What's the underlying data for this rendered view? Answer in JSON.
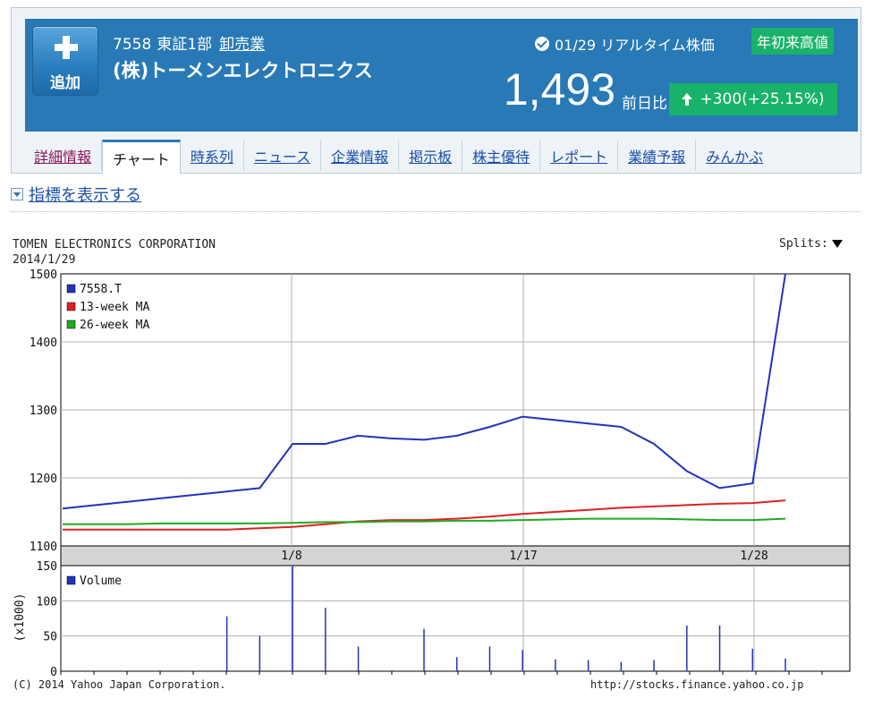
{
  "header": {
    "add_label": "追加",
    "code": "7558",
    "market": "東証1部",
    "industry": "卸売業",
    "company_name": "(株)トーメンエレクトロニクス",
    "realtime_label": "01/29 リアルタイム株価",
    "ytd_badge": "年初来高値",
    "price": "1,493",
    "change_label": "前日比",
    "change_value": "+300",
    "change_pct": "(+25.15%)",
    "colors": {
      "header_bg": "#2879b6",
      "badge_green": "#19b26a"
    }
  },
  "tabs": [
    {
      "label": "詳細情報"
    },
    {
      "label": "チャート",
      "active": true
    },
    {
      "label": "時系列"
    },
    {
      "label": "ニュース"
    },
    {
      "label": "企業情報"
    },
    {
      "label": "掲示板"
    },
    {
      "label": "株主優待"
    },
    {
      "label": "レポート"
    },
    {
      "label": "業績予報"
    },
    {
      "label": "みんかぶ"
    }
  ],
  "indicator_toggle": "指標を表示する",
  "chart": {
    "company": "TOMEN ELECTRONICS CORPORATION",
    "date": "2014/1/29",
    "splits_label": "Splits:",
    "footer_left": "(C) 2014 Yahoo Japan Corporation.",
    "footer_right": "http://stocks.finance.yahoo.co.jp"
  },
  "chart_data": [
    {
      "type": "line",
      "x_ticks": [
        "1/8",
        "1/17",
        "1/28"
      ],
      "yticks": [
        1100,
        1200,
        1300,
        1400,
        1500
      ],
      "ylim": [
        1100,
        1500
      ],
      "grid": true,
      "legend_position": "top-left",
      "series": [
        {
          "name": "7558.T",
          "color": "#2233bb",
          "values": [
            1155,
            1160,
            1165,
            1170,
            1175,
            1180,
            1185,
            1250,
            1250,
            1262,
            1258,
            1256,
            1262,
            1275,
            1290,
            1285,
            1280,
            1275,
            1250,
            1210,
            1185,
            1192,
            1500
          ]
        },
        {
          "name": "13-week MA",
          "color": "#dd2222",
          "values": [
            1124,
            1124,
            1124,
            1124,
            1124,
            1124,
            1126,
            1128,
            1132,
            1136,
            1138,
            1138,
            1140,
            1143,
            1147,
            1150,
            1153,
            1156,
            1158,
            1160,
            1162,
            1163,
            1167
          ]
        },
        {
          "name": "26-week MA",
          "color": "#22aa22",
          "values": [
            1132,
            1132,
            1132,
            1133,
            1133,
            1133,
            1133,
            1134,
            1135,
            1135,
            1136,
            1136,
            1137,
            1137,
            1138,
            1139,
            1140,
            1140,
            1140,
            1139,
            1138,
            1138,
            1140
          ]
        }
      ]
    },
    {
      "type": "bar",
      "ylabel": "(x1000)",
      "yticks": [
        0,
        50,
        100,
        150
      ],
      "ylim": [
        0,
        150
      ],
      "legend_position": "top-left",
      "series": [
        {
          "name": "Volume",
          "color": "#2233bb",
          "values": [
            0,
            0,
            0,
            0,
            0,
            78,
            50,
            150,
            90,
            35,
            0,
            60,
            20,
            35,
            30,
            17,
            16,
            13,
            16,
            65,
            65,
            32,
            18
          ]
        }
      ]
    }
  ]
}
